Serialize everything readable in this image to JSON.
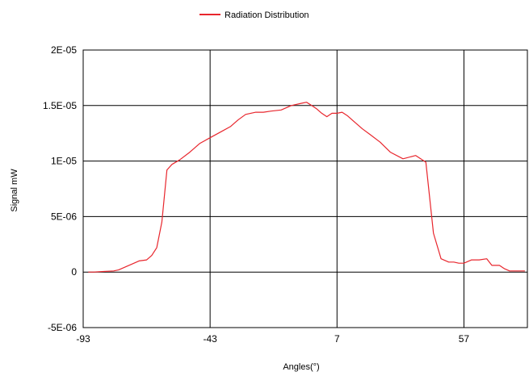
{
  "chart_data": {
    "type": "line",
    "title": "",
    "xlabel": "Angles(°)",
    "ylabel": "Signal mW",
    "xlim": [
      -93,
      82
    ],
    "ylim": [
      -5e-06,
      2e-05
    ],
    "x_ticks": [
      -93,
      -43,
      7,
      57
    ],
    "x_tick_labels": [
      "-93",
      "-43",
      "7",
      "57"
    ],
    "y_ticks": [
      -5e-06,
      0,
      5e-06,
      1e-05,
      1.5e-05,
      2e-05
    ],
    "y_tick_labels": [
      "-5E-06",
      "0",
      "5E-06",
      "1E-05",
      "1.5E-05",
      "2E-05"
    ],
    "grid": true,
    "legend_position": "top-center",
    "colors": {
      "series": "#e8262d",
      "grid": "#000000",
      "background": "#ffffff"
    },
    "series": [
      {
        "name": "Radiation Distribution",
        "x": [
          -91,
          -89,
          -85,
          -81,
          -79,
          -76,
          -73,
          -71,
          -68,
          -66,
          -64,
          -62,
          -60,
          -58,
          -55,
          -51,
          -47,
          -43,
          -39,
          -35,
          -32,
          -29,
          -25,
          -22,
          -19,
          -15,
          -11,
          -7,
          -5,
          -3,
          -1,
          1,
          3,
          5,
          7,
          9,
          11,
          13,
          15,
          17,
          20,
          24,
          28,
          33,
          38,
          42,
          45,
          48,
          51,
          53,
          55,
          57,
          60,
          63,
          66,
          68,
          71,
          73,
          75,
          77,
          79,
          81
        ],
        "y": [
          0.0,
          0.0,
          5e-08,
          1e-07,
          2e-07,
          5e-07,
          8e-07,
          1e-06,
          1.1e-06,
          1.5e-06,
          2.2e-06,
          4.5e-06,
          9.2e-06,
          9.7e-06,
          1.01e-05,
          1.08e-05,
          1.16e-05,
          1.21e-05,
          1.26e-05,
          1.31e-05,
          1.37e-05,
          1.42e-05,
          1.44e-05,
          1.44e-05,
          1.45e-05,
          1.46e-05,
          1.5e-05,
          1.52e-05,
          1.53e-05,
          1.5e-05,
          1.47e-05,
          1.43e-05,
          1.4e-05,
          1.43e-05,
          1.43e-05,
          1.44e-05,
          1.41e-05,
          1.37e-05,
          1.33e-05,
          1.29e-05,
          1.24e-05,
          1.17e-05,
          1.08e-05,
          1.02e-05,
          1.05e-05,
          9.9e-06,
          3.5e-06,
          1.2e-06,
          9e-07,
          9e-07,
          8e-07,
          8e-07,
          1.1e-06,
          1.1e-06,
          1.2e-06,
          6e-07,
          6e-07,
          3e-07,
          1e-07,
          1e-07,
          1e-07,
          1e-07
        ]
      }
    ]
  }
}
